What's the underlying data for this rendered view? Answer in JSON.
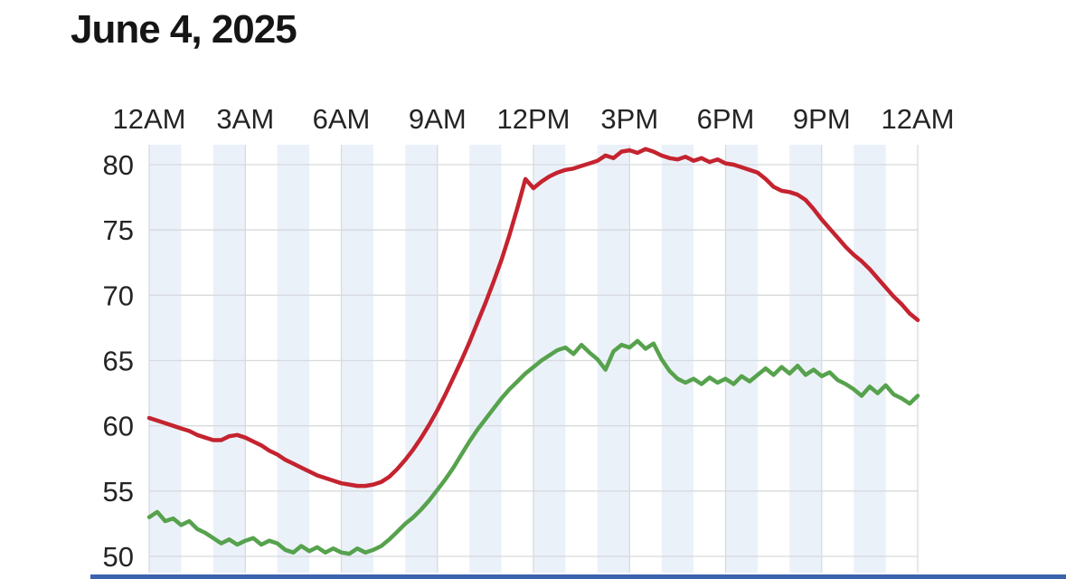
{
  "page": {
    "title": "June 4, 2025",
    "bottom_bar_color": "#3b62ad"
  },
  "labels": {
    "tick_text_color": "#242424"
  },
  "chart_data": {
    "type": "line",
    "title": "June 4, 2025",
    "grid": true,
    "grid_color": "#d7dade",
    "background_stripes": {
      "interval_hours": 1,
      "color": "#ebf1f8"
    },
    "x_axis": {
      "position": "top",
      "range_hours": [
        0,
        24
      ],
      "tick_hours": [
        0,
        3,
        6,
        9,
        12,
        15,
        18,
        21,
        24
      ],
      "tick_labels": [
        "12AM",
        "3AM",
        "6AM",
        "9AM",
        "12PM",
        "3PM",
        "6PM",
        "9PM",
        "12AM"
      ]
    },
    "y_axis": {
      "range": [
        50,
        80
      ],
      "ticks": [
        80,
        75,
        70,
        65,
        60,
        55,
        50
      ],
      "tick_labels": [
        "80",
        "75",
        "70",
        "65",
        "60",
        "55",
        "50"
      ]
    },
    "x_step_hours": 0.25,
    "series": [
      {
        "name": "red-series",
        "color": "#c4232f",
        "stroke_width": 4.5,
        "values": [
          60.6,
          60.4,
          60.2,
          60.0,
          59.8,
          59.6,
          59.3,
          59.1,
          58.9,
          58.9,
          59.2,
          59.3,
          59.1,
          58.8,
          58.5,
          58.1,
          57.8,
          57.4,
          57.1,
          56.8,
          56.5,
          56.2,
          56.0,
          55.8,
          55.6,
          55.5,
          55.4,
          55.4,
          55.5,
          55.7,
          56.1,
          56.7,
          57.4,
          58.2,
          59.1,
          60.1,
          61.2,
          62.4,
          63.7,
          65.0,
          66.4,
          67.9,
          69.4,
          71.0,
          72.7,
          74.6,
          76.7,
          78.9,
          78.2,
          78.7,
          79.1,
          79.4,
          79.6,
          79.7,
          79.9,
          80.1,
          80.3,
          80.7,
          80.5,
          81.0,
          81.1,
          80.9,
          81.2,
          81.0,
          80.7,
          80.5,
          80.4,
          80.6,
          80.3,
          80.5,
          80.2,
          80.4,
          80.1,
          80.0,
          79.8,
          79.6,
          79.4,
          78.9,
          78.3,
          78.0,
          77.9,
          77.7,
          77.3,
          76.6,
          75.8,
          75.1,
          74.4,
          73.7,
          73.1,
          72.6,
          72.0,
          71.3,
          70.6,
          69.9,
          69.3,
          68.6,
          68.1
        ]
      },
      {
        "name": "green-series",
        "color": "#56a24d",
        "stroke_width": 4.5,
        "values": [
          53.0,
          53.4,
          52.7,
          52.9,
          52.4,
          52.7,
          52.1,
          51.8,
          51.4,
          51.0,
          51.3,
          50.9,
          51.2,
          51.4,
          50.9,
          51.2,
          51.0,
          50.5,
          50.3,
          50.8,
          50.4,
          50.7,
          50.3,
          50.6,
          50.3,
          50.2,
          50.6,
          50.3,
          50.5,
          50.8,
          51.3,
          51.9,
          52.5,
          53.0,
          53.6,
          54.3,
          55.1,
          55.9,
          56.8,
          57.8,
          58.8,
          59.7,
          60.5,
          61.3,
          62.1,
          62.8,
          63.4,
          64.0,
          64.5,
          65.0,
          65.4,
          65.8,
          66.0,
          65.5,
          66.2,
          65.6,
          65.1,
          64.3,
          65.7,
          66.2,
          66.0,
          66.5,
          65.9,
          66.3,
          65.1,
          64.2,
          63.6,
          63.3,
          63.6,
          63.2,
          63.7,
          63.3,
          63.6,
          63.2,
          63.8,
          63.4,
          63.9,
          64.4,
          63.9,
          64.5,
          64.0,
          64.6,
          63.9,
          64.3,
          63.8,
          64.1,
          63.5,
          63.2,
          62.8,
          62.3,
          63.0,
          62.5,
          63.1,
          62.4,
          62.1,
          61.7,
          62.3
        ]
      }
    ]
  }
}
